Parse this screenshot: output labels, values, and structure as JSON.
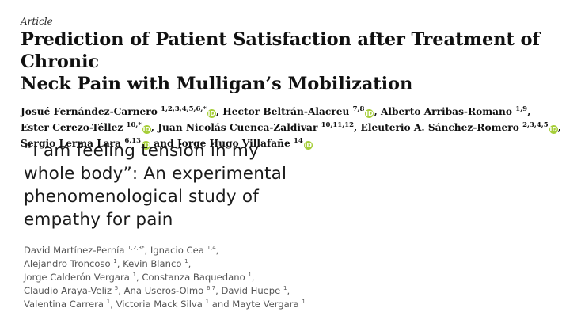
{
  "paper1": {
    "article_label": "Article",
    "title_lines": [
      "Prediction of Patient Satisfaction after Treatment of Chronic",
      "Neck Pain with Mulligan’s Mobilization"
    ],
    "author_lines": [
      [
        {
          "name": "Josué Fernández-Carnero",
          "sup": "1,2,3,4,5,6,*",
          "orcid": true,
          "sep": ","
        },
        {
          "name": "Hector Beltrán-Alacreu",
          "sup": "7,8",
          "orcid": true,
          "sep": ","
        },
        {
          "name": "Alberto Arribas-Romano",
          "sup": "1,9",
          "orcid": false,
          "sep": ","
        }
      ],
      [
        {
          "name": "Ester Cerezo-Téllez",
          "sup": "10,*",
          "orcid": true,
          "sep": ","
        },
        {
          "name": "Juan Nicolás Cuenca-Zaldivar",
          "sup": "10,11,12",
          "orcid": false,
          "sep": ","
        },
        {
          "name": "Eleuterio A. Sánchez-Romero",
          "sup": "2,3,4,5",
          "orcid": true,
          "sep": ","
        }
      ],
      [
        {
          "name": "Sergio Lerma Lara",
          "sup": "6,13",
          "orcid": true,
          "sep": " and"
        },
        {
          "name": "Jorge Hugo Villafañe",
          "sup": "14",
          "orcid": true,
          "sep": ""
        }
      ]
    ]
  },
  "paper2": {
    "title_lines": [
      "“I am feeling tension in my",
      "whole body”: An experimental",
      "phenomenological study of",
      "empathy for pain"
    ],
    "author_lines": [
      [
        {
          "name": "David Martínez-Pernía",
          "sup": "1,2,3*",
          "sep": ","
        },
        {
          "name": "Ignacio Cea",
          "sup": "1,4",
          "sep": ","
        }
      ],
      [
        {
          "name": "Alejandro Troncoso",
          "sup": "1",
          "sep": ","
        },
        {
          "name": "Kevin Blanco",
          "sup": "1",
          "sep": ","
        }
      ],
      [
        {
          "name": "Jorge Calderón Vergara",
          "sup": "1",
          "sep": ","
        },
        {
          "name": "Constanza Baquedano",
          "sup": "1",
          "sep": ","
        }
      ],
      [
        {
          "name": "Claudio Araya-Veliz",
          "sup": "5",
          "sep": ","
        },
        {
          "name": "Ana Useros-Olmo",
          "sup": "6,7",
          "sep": ","
        },
        {
          "name": "David Huepe",
          "sup": "1",
          "sep": ","
        }
      ],
      [
        {
          "name": "Valentina Carrera",
          "sup": "1",
          "sep": ","
        },
        {
          "name": "Victoria Mack Silva",
          "sup": "1",
          "sep": " and"
        },
        {
          "name": "Mayte Vergara",
          "sup": "1",
          "sep": ""
        }
      ]
    ]
  },
  "icons": {
    "orcid_glyph": "iD",
    "orcid_color": "#a6ce39"
  }
}
